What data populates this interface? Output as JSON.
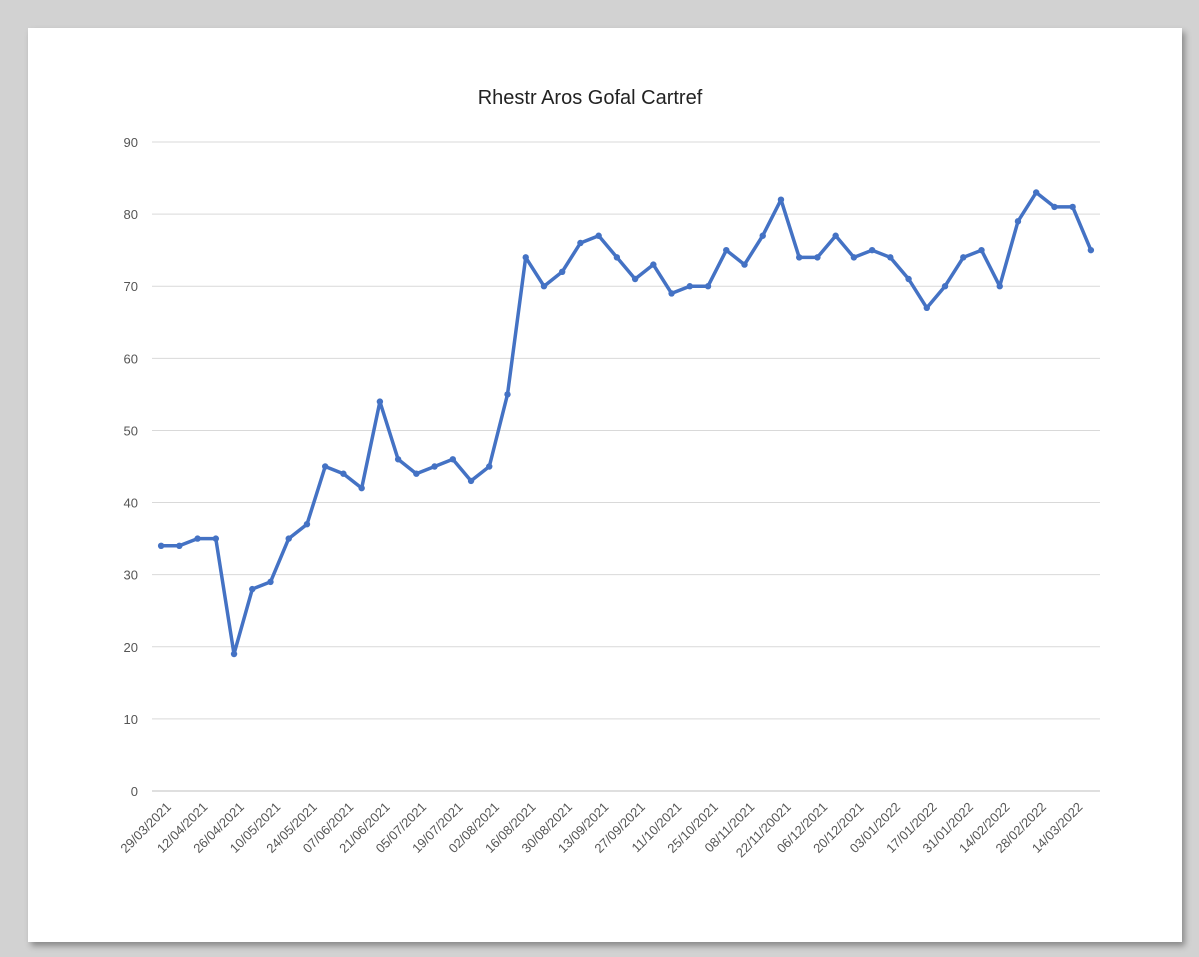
{
  "chart_data": {
    "type": "line",
    "title": "Rhestr Aros Gofal Cartref",
    "xlabel": "",
    "ylabel": "",
    "ylim": [
      0,
      90
    ],
    "yticks": [
      0,
      10,
      20,
      30,
      40,
      50,
      60,
      70,
      80,
      90
    ],
    "grid": true,
    "legend": "none",
    "x_tick_labels": [
      "29/03/2021",
      "12/04/2021",
      "26/04/2021",
      "10/05/2021",
      "24/05/2021",
      "07/06/2021",
      "21/06/2021",
      "05/07/2021",
      "19/07/2021",
      "02/08/2021",
      "16/08/2021",
      "30/08/2021",
      "13/09/2021",
      "27/09/2021",
      "11/10/2021",
      "25/10/2021",
      "08/11/2021",
      "22/11/20021",
      "06/12/2021",
      "20/12/2021",
      "03/01/2022",
      "17/01/2022",
      "31/01/2022",
      "14/02/2022",
      "28/02/2022",
      "14/03/2022"
    ],
    "line_color": "#4472c4",
    "series": [
      {
        "values": [
          34,
          34,
          35,
          35,
          19,
          28,
          29,
          35,
          37,
          45,
          44,
          42,
          54,
          46,
          44,
          45,
          46,
          43,
          45,
          55,
          74,
          70,
          72,
          76,
          77,
          74,
          71,
          73,
          69,
          70,
          70,
          75,
          73,
          77,
          82,
          74,
          74,
          77,
          74,
          75,
          74,
          71,
          67,
          70,
          74,
          75,
          70,
          79,
          83,
          81,
          81,
          75
        ]
      }
    ]
  }
}
